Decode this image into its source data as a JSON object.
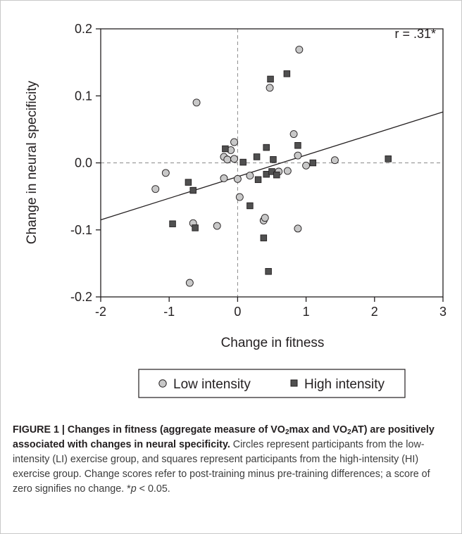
{
  "chart_data": {
    "type": "scatter",
    "xlabel": "Change in fitness",
    "ylabel": "Change in neural specificity",
    "xlim": [
      -2,
      3
    ],
    "ylim": [
      -0.2,
      0.2
    ],
    "x_ticks": [
      -2,
      -1,
      0,
      1,
      2,
      3
    ],
    "x_tick_labels": [
      "-2",
      "-1",
      "0",
      "1",
      "2",
      "3"
    ],
    "y_ticks": [
      -0.2,
      -0.1,
      0.0,
      0.1,
      0.2
    ],
    "y_tick_labels": [
      "-0.2",
      "-0.1",
      "0.0",
      "0.1",
      "0.2"
    ],
    "annotation": "r = .31*",
    "regression_line": {
      "x": [
        -2,
        3
      ],
      "y": [
        -0.085,
        0.076
      ]
    },
    "reference_lines": {
      "x": 0,
      "y": 0
    },
    "legend_position": "bottom",
    "series": [
      {
        "name": "Low intensity",
        "marker": "circle",
        "color": "#c8c8c8",
        "points": [
          [
            -1.2,
            -0.039
          ],
          [
            -1.05,
            -0.015
          ],
          [
            -0.6,
            0.09
          ],
          [
            -0.7,
            -0.179
          ],
          [
            -0.65,
            -0.09
          ],
          [
            -0.3,
            -0.094
          ],
          [
            -0.2,
            -0.023
          ],
          [
            -0.2,
            0.009
          ],
          [
            -0.15,
            0.005
          ],
          [
            -0.1,
            0.019
          ],
          [
            -0.05,
            0.031
          ],
          [
            -0.05,
            0.006
          ],
          [
            0.0,
            -0.024
          ],
          [
            0.03,
            -0.051
          ],
          [
            0.18,
            -0.019
          ],
          [
            0.38,
            -0.086
          ],
          [
            0.4,
            -0.082
          ],
          [
            0.47,
            0.112
          ],
          [
            0.6,
            -0.013
          ],
          [
            0.73,
            -0.012
          ],
          [
            0.82,
            0.043
          ],
          [
            0.88,
            0.011
          ],
          [
            0.9,
            0.169
          ],
          [
            0.88,
            -0.098
          ],
          [
            1.0,
            -0.004
          ],
          [
            1.42,
            0.004
          ]
        ]
      },
      {
        "name": "High intensity",
        "marker": "square",
        "color": "#505050",
        "points": [
          [
            -0.95,
            -0.091
          ],
          [
            -0.72,
            -0.029
          ],
          [
            -0.65,
            -0.041
          ],
          [
            -0.62,
            -0.097
          ],
          [
            -0.18,
            0.021
          ],
          [
            0.08,
            0.001
          ],
          [
            0.18,
            -0.064
          ],
          [
            0.28,
            0.009
          ],
          [
            0.3,
            -0.025
          ],
          [
            0.38,
            -0.112
          ],
          [
            0.42,
            -0.017
          ],
          [
            0.42,
            0.023
          ],
          [
            0.45,
            -0.162
          ],
          [
            0.48,
            0.125
          ],
          [
            0.5,
            -0.013
          ],
          [
            0.52,
            0.005
          ],
          [
            0.57,
            -0.018
          ],
          [
            0.72,
            0.133
          ],
          [
            0.88,
            0.026
          ],
          [
            1.1,
            0.0
          ],
          [
            2.2,
            0.006
          ]
        ]
      }
    ]
  },
  "caption": {
    "title_parts": [
      {
        "t": "FIGURE 1 | Changes in fitness (aggregate measure of VO"
      },
      {
        "t": "2",
        "sub": true
      },
      {
        "t": "max and VO"
      },
      {
        "t": "2",
        "sub": true
      },
      {
        "t": "AT) are positively associated with changes in neural specificity."
      }
    ],
    "body_parts": [
      {
        "t": " Circles represent participants from the low-intensity (LI) exercise group, and squares represent participants from the high-intensity (HI) exercise group. Change scores refer to post-training minus pre-training differences; a score of zero signifies no change. *"
      },
      {
        "t": "p",
        "italic": true
      },
      {
        "t": " < 0.05."
      }
    ]
  }
}
